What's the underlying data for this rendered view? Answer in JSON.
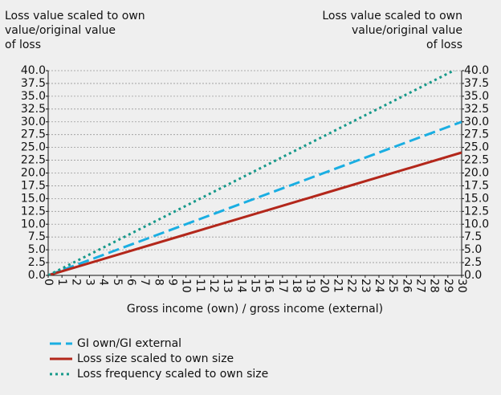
{
  "chart_data": {
    "type": "line",
    "ylabel": [
      "Loss value scaled to own",
      "value/original value",
      "of loss"
    ],
    "y2label": [
      "Loss value scaled to own",
      "value/original value",
      "of loss"
    ],
    "xlabel": "Gross income (own) / gross income (external)",
    "x": [
      0,
      10,
      20,
      30
    ],
    "series": [
      {
        "name": "GI own/GI external",
        "color": "#1aaee2",
        "style": "dashed",
        "values": [
          0,
          10,
          20,
          30
        ]
      },
      {
        "name": "Loss size scaled to own size",
        "color": "#b3271b",
        "style": "solid",
        "values": [
          0,
          8,
          16,
          24
        ]
      },
      {
        "name": "Loss frequency scaled to own size",
        "color": "#16998a",
        "style": "dotted",
        "values": [
          0,
          13.6,
          27.2,
          40.8
        ]
      }
    ],
    "xlim": [
      0,
      30
    ],
    "xticks": [
      0,
      1,
      2,
      3,
      4,
      5,
      6,
      7,
      8,
      9,
      10,
      11,
      12,
      13,
      14,
      15,
      16,
      17,
      18,
      19,
      20,
      21,
      22,
      23,
      24,
      25,
      26,
      27,
      28,
      29,
      30
    ],
    "ylim": [
      0,
      40
    ],
    "yticks": [
      {
        "value": 0,
        "label": "0.0"
      },
      2.5,
      {
        "value": 5,
        "label": "5.0"
      },
      7.5,
      {
        "value": 10,
        "label": "10.0"
      },
      12.5,
      {
        "value": 15,
        "label": "15.0"
      },
      17.5,
      {
        "value": 20,
        "label": "20.0"
      },
      22.5,
      {
        "value": 25,
        "label": "25.0"
      },
      27.5,
      {
        "value": 30,
        "label": "30.0"
      },
      32.5,
      {
        "value": 35,
        "label": "35.0"
      },
      37.5,
      {
        "value": 40,
        "label": "40.0"
      }
    ],
    "y2lim": [
      0,
      40
    ],
    "y2ticks": [
      {
        "value": 0,
        "label": "0.0"
      },
      2.5,
      {
        "value": 5,
        "label": "5.0"
      },
      7.5,
      {
        "value": 10,
        "label": "10.0"
      },
      12.5,
      {
        "value": 15,
        "label": "15.0"
      },
      17.5,
      {
        "value": 20,
        "label": "20.0"
      },
      22.5,
      {
        "value": 25,
        "label": "25.0"
      },
      27.5,
      {
        "value": 30,
        "label": "30.0"
      },
      32.5,
      {
        "value": 35,
        "label": "35.0"
      },
      37.5,
      {
        "value": 40,
        "label": "40.0"
      }
    ],
    "grid": true,
    "legend": "bottom"
  }
}
